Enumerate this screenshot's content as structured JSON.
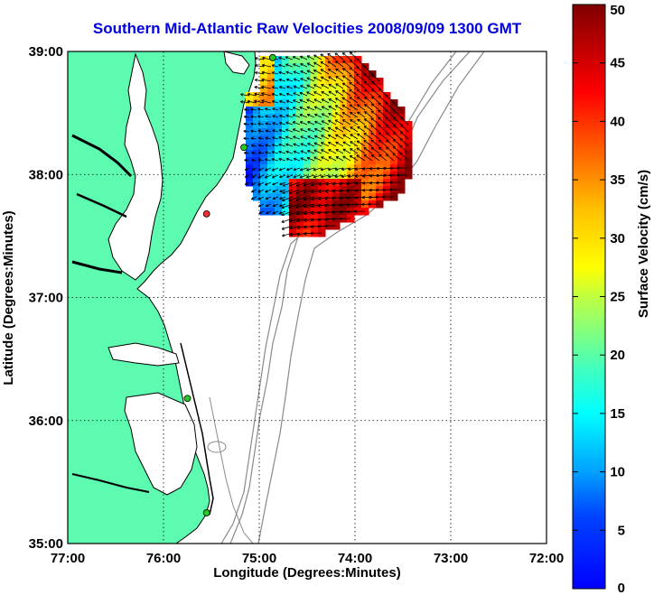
{
  "title": "Southern Mid-Atlantic Raw Velocities 2008/09/09 1300 GMT",
  "colors": {
    "land": "#5dfbb0",
    "coast": "#000000",
    "bathy": "#8a8a8a",
    "site_active": "#22cc22",
    "site_inactive": "#ee3333",
    "title": "#0000e0"
  },
  "chart_data": {
    "type": "heatmap",
    "xlabel": "Longitude (Degrees:Minutes)",
    "ylabel": "Latitude (Degrees:Minutes)",
    "xlim": [
      -77,
      -72
    ],
    "ylim": [
      35,
      39
    ],
    "x_ticks": [
      {
        "value": -77,
        "label": "77:00"
      },
      {
        "value": -76,
        "label": "76:00"
      },
      {
        "value": -75,
        "label": "75:00"
      },
      {
        "value": -74,
        "label": "74:00"
      },
      {
        "value": -73,
        "label": "73:00"
      },
      {
        "value": -72,
        "label": "72:00"
      }
    ],
    "y_ticks": [
      {
        "value": 35,
        "label": "35:00"
      },
      {
        "value": 36,
        "label": "36:00"
      },
      {
        "value": 37,
        "label": "37:00"
      },
      {
        "value": 38,
        "label": "38:00"
      },
      {
        "value": 39,
        "label": "39:00"
      }
    ],
    "grid": true,
    "colorbar": {
      "label": "Surface Velocity (cm/s)",
      "min": 0,
      "max": 50,
      "ticks": [
        0,
        5,
        10,
        15,
        20,
        25,
        30,
        35,
        40,
        45,
        50
      ],
      "colormap": "jet"
    },
    "radar_sites": [
      {
        "lon": -74.86,
        "lat": 38.95,
        "status": "active"
      },
      {
        "lon": -75.16,
        "lat": 38.22,
        "status": "active"
      },
      {
        "lon": -75.55,
        "lat": 37.68,
        "status": "inactive"
      },
      {
        "lon": -75.75,
        "lat": 36.18,
        "status": "active"
      },
      {
        "lon": -75.55,
        "lat": 35.25,
        "status": "active"
      }
    ]
  }
}
